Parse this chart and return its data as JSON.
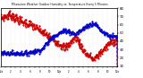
{
  "title": "Milwaukee Weather Outdoor Humidity vs. Temperature Every 5 Minutes",
  "bg_color": "#ffffff",
  "plot_bg_color": "#ffffff",
  "grid_color": "#cccccc",
  "temp_color": "#cc0000",
  "humid_color": "#0000cc",
  "linewidth": 0.6,
  "markersize": 1.2,
  "xlim": [
    0,
    287
  ],
  "ylim_temp": [
    10,
    80
  ],
  "ylim_humid": [
    0,
    100
  ],
  "right_yticks": [
    10,
    20,
    30,
    40,
    50,
    60,
    70,
    80
  ],
  "right_ytick_labels": [
    "10",
    "20",
    "30",
    "40",
    "50",
    "60",
    "70",
    "80"
  ],
  "n": 288,
  "temp_segments": [
    {
      "start": 0,
      "end": 25,
      "from": 68,
      "to": 72
    },
    {
      "start": 25,
      "end": 50,
      "from": 72,
      "to": 64
    },
    {
      "start": 50,
      "end": 75,
      "from": 64,
      "to": 60
    },
    {
      "start": 75,
      "end": 100,
      "from": 60,
      "to": 52
    },
    {
      "start": 100,
      "end": 130,
      "from": 52,
      "to": 42
    },
    {
      "start": 130,
      "end": 160,
      "from": 42,
      "to": 32
    },
    {
      "start": 160,
      "end": 185,
      "from": 32,
      "to": 45
    },
    {
      "start": 185,
      "end": 210,
      "from": 45,
      "to": 25
    },
    {
      "start": 210,
      "end": 230,
      "from": 25,
      "to": 18
    },
    {
      "start": 230,
      "end": 250,
      "from": 18,
      "to": 28
    },
    {
      "start": 250,
      "end": 270,
      "from": 28,
      "to": 38
    },
    {
      "start": 270,
      "end": 287,
      "from": 38,
      "to": 42
    }
  ],
  "humid_segments": [
    {
      "start": 0,
      "end": 60,
      "from": 22,
      "to": 22
    },
    {
      "start": 60,
      "end": 100,
      "from": 22,
      "to": 28
    },
    {
      "start": 100,
      "end": 130,
      "from": 28,
      "to": 52
    },
    {
      "start": 130,
      "end": 160,
      "from": 52,
      "to": 62
    },
    {
      "start": 160,
      "end": 185,
      "from": 62,
      "to": 55
    },
    {
      "start": 185,
      "end": 210,
      "from": 55,
      "to": 68
    },
    {
      "start": 210,
      "end": 230,
      "from": 68,
      "to": 75
    },
    {
      "start": 230,
      "end": 250,
      "from": 75,
      "to": 60
    },
    {
      "start": 250,
      "end": 270,
      "from": 60,
      "to": 52
    },
    {
      "start": 270,
      "end": 287,
      "from": 52,
      "to": 50
    }
  ]
}
